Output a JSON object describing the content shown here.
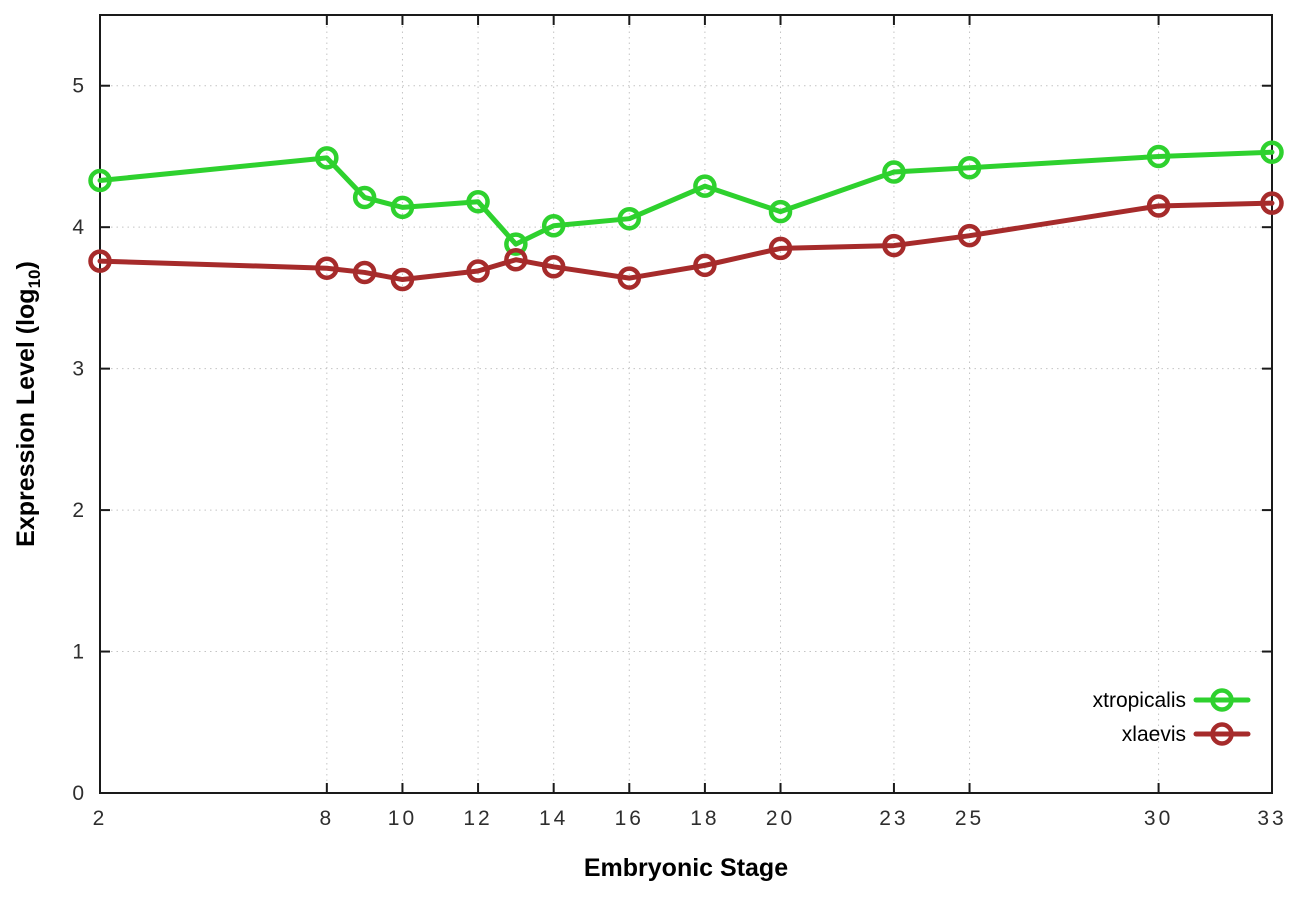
{
  "chart_data": {
    "type": "line",
    "title": "",
    "xlabel": "Embryonic Stage",
    "ylabel": {
      "main": "Expression Level (log",
      "sub": "10",
      "suffix": ")"
    },
    "x": [
      2,
      8,
      9,
      10,
      12,
      13,
      14,
      16,
      18,
      20,
      23,
      25,
      30,
      33
    ],
    "xticks": [
      2,
      8,
      10,
      12,
      14,
      16,
      18,
      20,
      23,
      25,
      30,
      33
    ],
    "yticks": [
      0,
      1,
      2,
      3,
      4,
      5
    ],
    "xlim": [
      2,
      33
    ],
    "ylim": [
      0,
      5.5
    ],
    "grid": true,
    "legend_position": "bottom-right",
    "series": [
      {
        "name": "xtropicalis",
        "color": "#2ed12e",
        "marker": "open-circle",
        "values": [
          4.33,
          4.49,
          4.21,
          4.14,
          4.18,
          3.88,
          4.01,
          4.06,
          4.29,
          4.11,
          4.39,
          4.42,
          4.5,
          4.53
        ]
      },
      {
        "name": "xlaevis",
        "color": "#a62b2b",
        "marker": "open-circle",
        "values": [
          3.76,
          3.71,
          3.68,
          3.63,
          3.69,
          3.77,
          3.72,
          3.64,
          3.73,
          3.85,
          3.87,
          3.94,
          4.15,
          4.17
        ]
      }
    ],
    "colors": {
      "axis": "#1a1a1a",
      "grid": "#c4c4c4",
      "tick_label": "#2e2e2e",
      "axis_label": "#000000",
      "legend_text": "#000000",
      "background": "#ffffff"
    }
  }
}
